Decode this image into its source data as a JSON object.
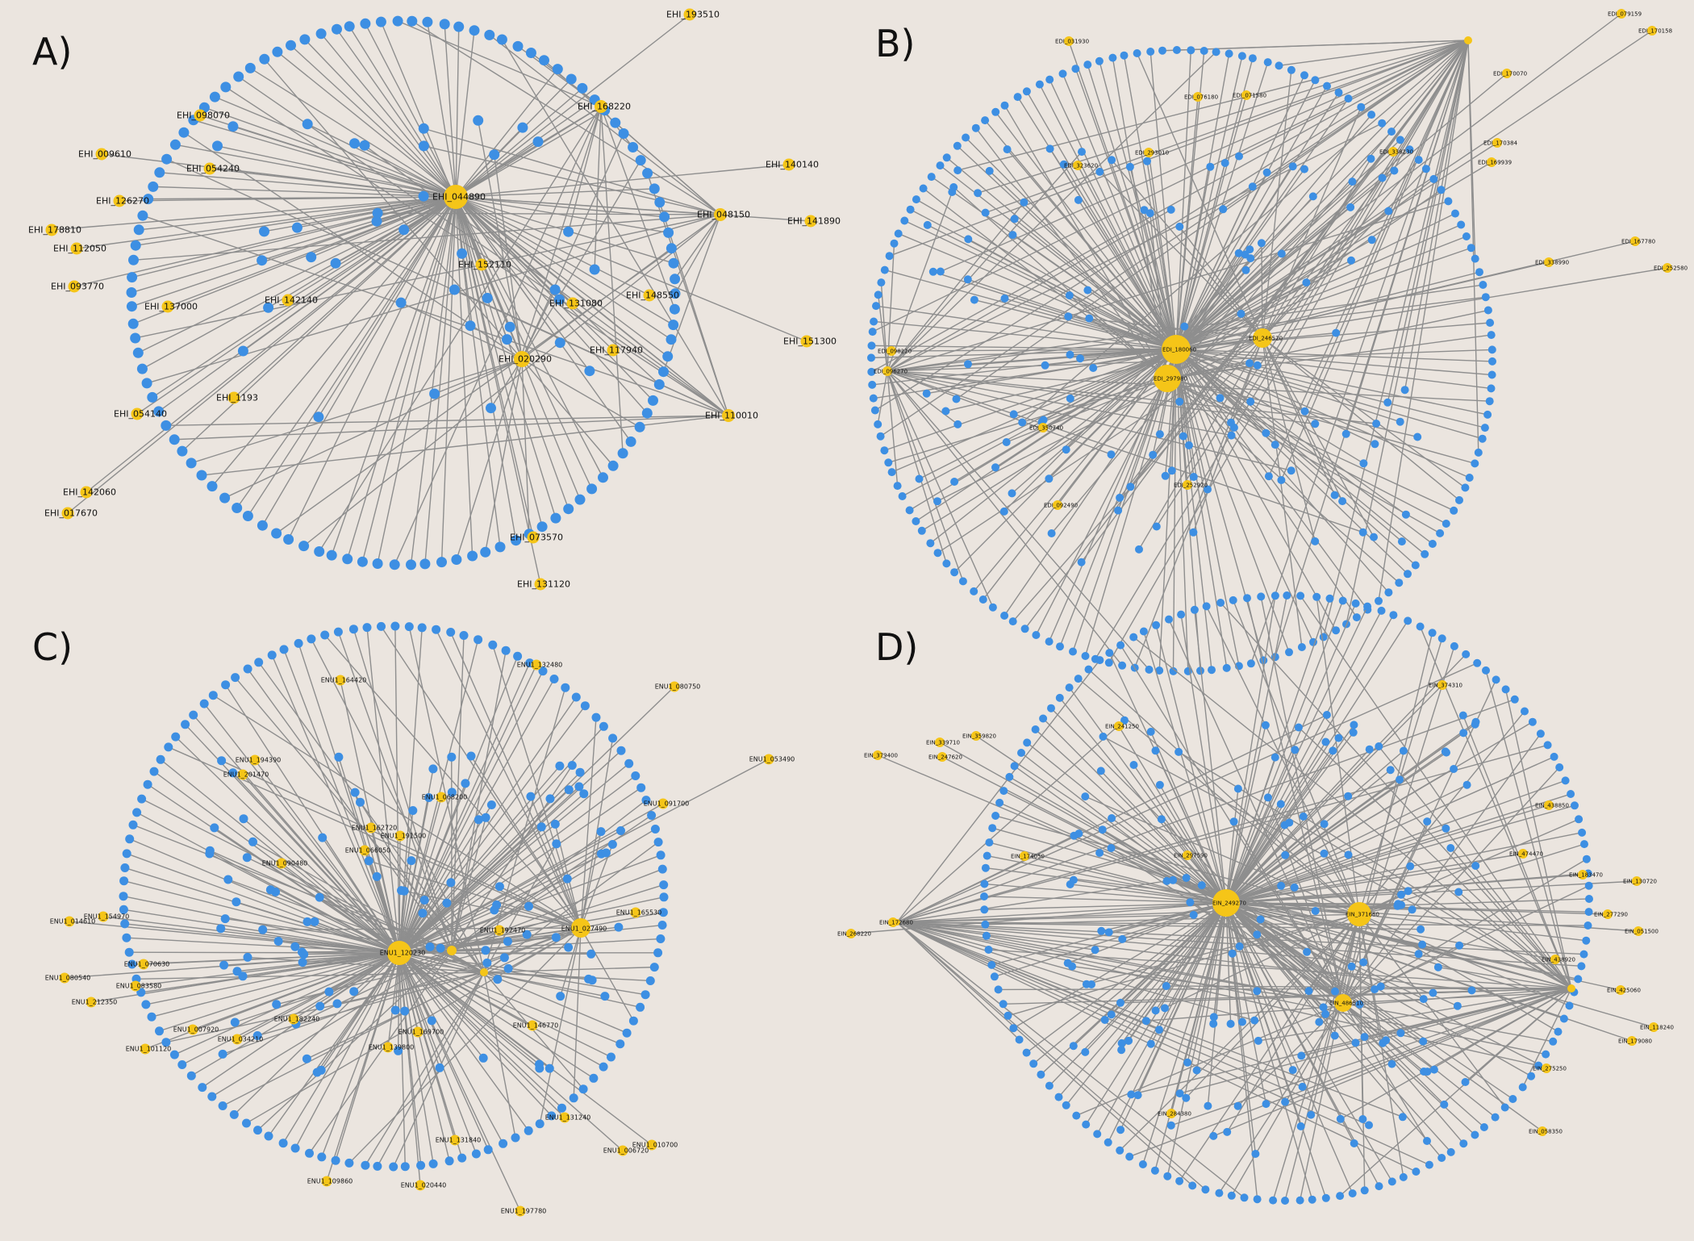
{
  "figure": {
    "background": "#ebe5df",
    "hub_color": "#f5c518",
    "node_color": "#3d8fe3",
    "edge_color": "#8e8e8e"
  },
  "panels": [
    {
      "letter": "A)",
      "labels": [
        "EHI_193510",
        "EHI_098070",
        "EHI_168220",
        "EHI_009610",
        "EHI_054240",
        "EHI_140140",
        "EHI_044890",
        "EHI_126270",
        "EHI_048150",
        "EHI_141890",
        "EHI_178810",
        "EHI_112050",
        "EHI_152110",
        "EHI_093770",
        "EHI_142140",
        "EHI_148550",
        "EHI_137000",
        "EHI_131080",
        "EHI_117940",
        "EHI_151300",
        "EHI_020290",
        "EHI_1193",
        "EHI_054140",
        "EHI_110010",
        "EHI_142060",
        "EHI_017670",
        "EHI_073570",
        "EHI_131120"
      ]
    },
    {
      "letter": "B)",
      "labels": [
        "EDI_031930",
        "EDI_076180",
        "EDI_071580",
        "EDI_323620",
        "EDI_293010",
        "EDI_338230",
        "EDI_180060",
        "EDI_246520",
        "EDI_297980",
        "EDI_098220",
        "EDI_096270",
        "EDI_350740",
        "EDI_252920",
        "EDI_092490",
        "EDI_167780",
        "EDI_252580",
        "EDI_338990",
        "EDI_170070",
        "EDI_170384",
        "EDI_169939",
        "EDI_079159",
        "EDI_170158"
      ]
    },
    {
      "letter": "C)",
      "labels": [
        "ENU1_132480",
        "ENU1_080750",
        "ENU1_164420",
        "ENU1_053490",
        "ENU1_194390",
        "ENU1_201470",
        "ENU1_068200",
        "ENU1_091700",
        "ENU1_162720",
        "ENU1_191500",
        "ENU1_066050",
        "ENU1_090480",
        "ENU1_165530",
        "ENU1_027490",
        "ENU1_192470",
        "ENU1_120230",
        "ENU1_154970",
        "ENU1_014610",
        "ENU1_070630",
        "ENU1_080540",
        "ENU1_083580",
        "ENU1_212350",
        "ENU1_182240",
        "ENU1_007920",
        "ENU1_034210",
        "ENU1_101120",
        "ENU1_169700",
        "ENU1_139800",
        "ENU1_146770",
        "ENU1_131240",
        "ENU1_131840",
        "ENU1_006720",
        "ENU1_010700",
        "ENU1_109860",
        "ENU1_020440",
        "ENU1_197780"
      ]
    },
    {
      "letter": "D)",
      "labels": [
        "EIN_374310",
        "EIN_241250",
        "EIN_379400",
        "EIN_247620",
        "EIN_339710",
        "EIN_359820",
        "EIN_249270",
        "EIN_371660",
        "EIN_486510",
        "EIN_172680",
        "EIN_268220",
        "EIN_174050",
        "EIN_438850",
        "EIN_474470",
        "EIN_183470",
        "EIN_130720",
        "EIN_277290",
        "EIN_051500",
        "EIN_438920",
        "EIN_297590",
        "EIN_425060",
        "EIN_118240",
        "EIN_179080",
        "EIN_275250",
        "EIN_058350",
        "EIN_284380"
      ]
    }
  ]
}
